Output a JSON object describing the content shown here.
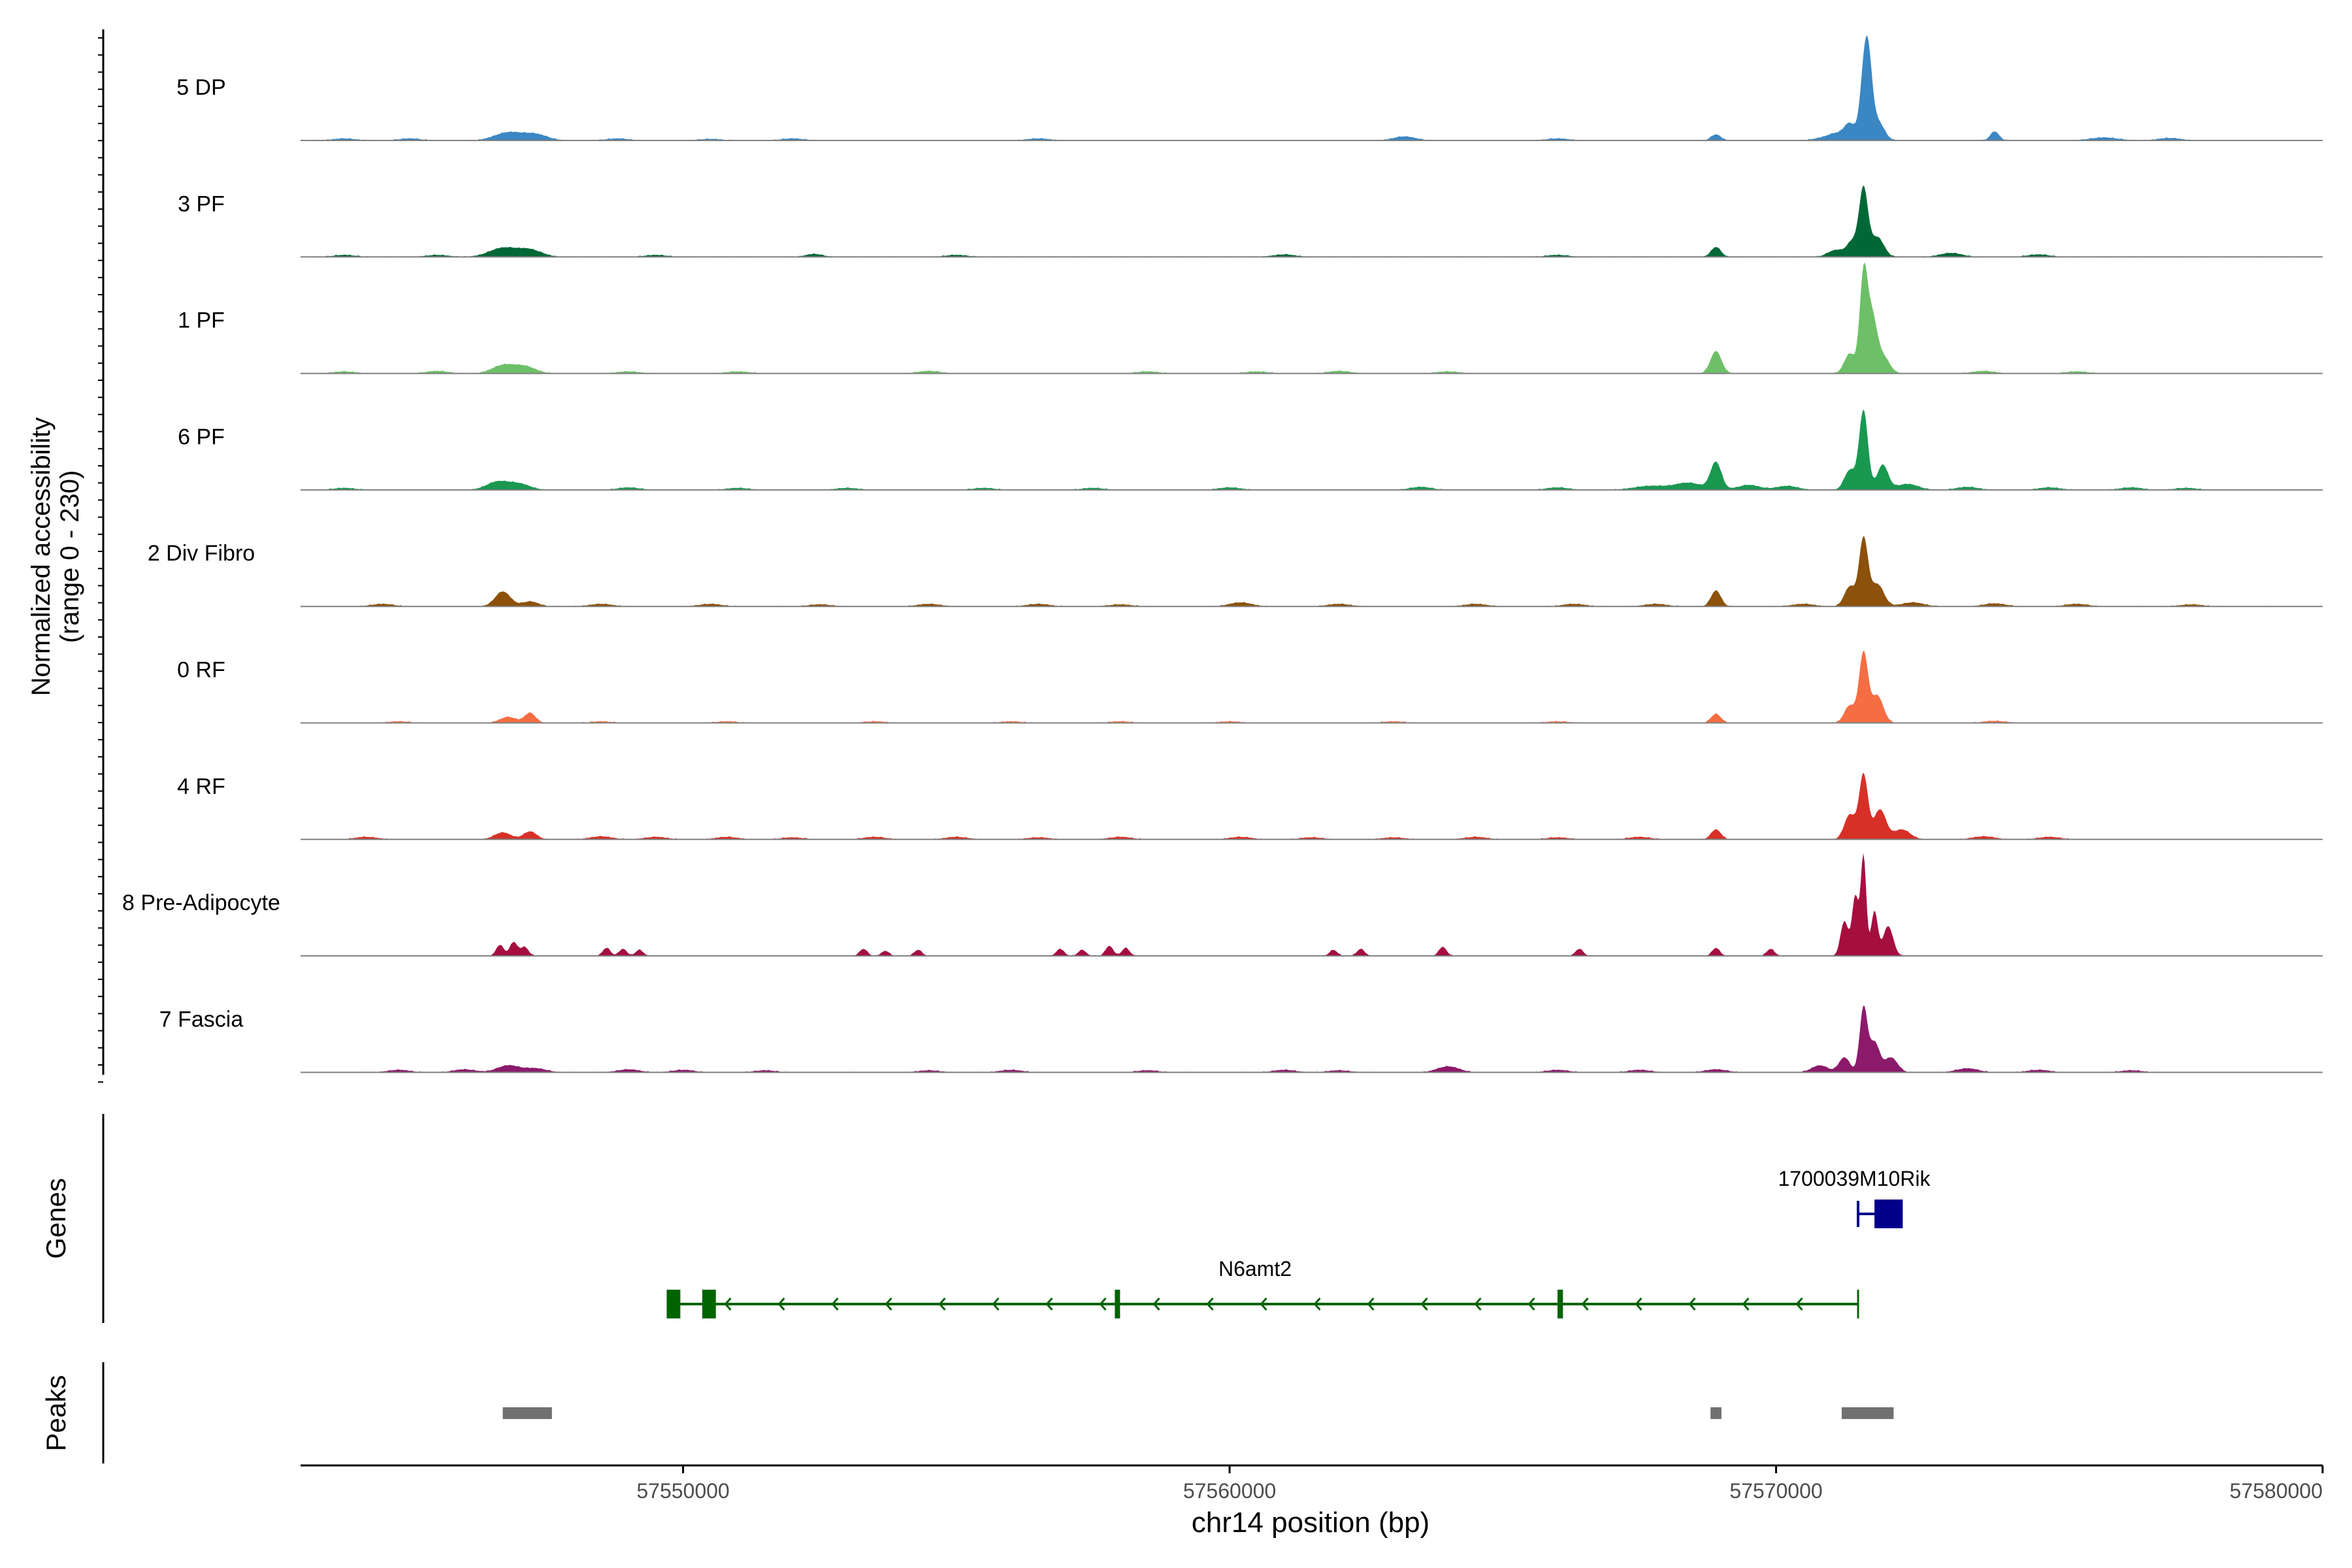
{
  "chart_data": {
    "type": "area",
    "title": "",
    "ylabel_line1": "Normalized accessibility",
    "ylabel_line2": "(range 0 - 230)",
    "xlabel": "chr14 position (bp)",
    "xlim": [
      57543000,
      57580000
    ],
    "ylim": [
      0,
      230
    ],
    "xticks": [
      57550000,
      57560000,
      57570000,
      57580000
    ],
    "xtick_labels": [
      "57550000",
      "57560000",
      "57570000",
      "57580000"
    ],
    "grid": false,
    "legend": "none",
    "series": [
      {
        "name": "5 DP",
        "color": "#3A87C4",
        "peaks": [
          [
            57543800,
            4,
            200
          ],
          [
            57545000,
            4,
            200
          ],
          [
            57546800,
            16,
            250
          ],
          [
            57547300,
            12,
            220
          ],
          [
            57548800,
            4,
            200
          ],
          [
            57550500,
            3,
            200
          ],
          [
            57552000,
            4,
            200
          ],
          [
            57556500,
            4,
            200
          ],
          [
            57563200,
            8,
            200
          ],
          [
            57566000,
            4,
            200
          ],
          [
            57568900,
            12,
            90
          ],
          [
            57570800,
            4,
            150
          ],
          [
            57571100,
            14,
            150
          ],
          [
            57571350,
            32,
            100
          ],
          [
            57571620,
            140,
            80
          ],
          [
            57571700,
            90,
            70
          ],
          [
            57571850,
            40,
            120
          ],
          [
            57574000,
            18,
            80
          ],
          [
            57576000,
            6,
            250
          ],
          [
            57577200,
            5,
            200
          ]
        ]
      },
      {
        "name": "3 PF",
        "color": "#006837",
        "peaks": [
          [
            57543800,
            4,
            200
          ],
          [
            57545500,
            4,
            200
          ],
          [
            57546700,
            18,
            250
          ],
          [
            57547200,
            14,
            220
          ],
          [
            57549500,
            4,
            200
          ],
          [
            57552400,
            6,
            150
          ],
          [
            57555000,
            4,
            200
          ],
          [
            57561000,
            5,
            200
          ],
          [
            57566000,
            4,
            200
          ],
          [
            57568900,
            20,
            90
          ],
          [
            57571100,
            14,
            150
          ],
          [
            57571400,
            30,
            100
          ],
          [
            57571600,
            135,
            80
          ],
          [
            57571850,
            40,
            120
          ],
          [
            57573200,
            8,
            200
          ],
          [
            57574800,
            5,
            200
          ]
        ]
      },
      {
        "name": "1 PF",
        "color": "#6DC067",
        "peaks": [
          [
            57543800,
            4,
            200
          ],
          [
            57545500,
            5,
            200
          ],
          [
            57546700,
            16,
            200
          ],
          [
            57547100,
            14,
            200
          ],
          [
            57549000,
            4,
            200
          ],
          [
            57551000,
            4,
            200
          ],
          [
            57554500,
            5,
            200
          ],
          [
            57558500,
            4,
            200
          ],
          [
            57560500,
            4,
            200
          ],
          [
            57562000,
            5,
            200
          ],
          [
            57564000,
            4,
            200
          ],
          [
            57568900,
            45,
            100
          ],
          [
            57571350,
            40,
            100
          ],
          [
            57571600,
            190,
            70
          ],
          [
            57571750,
            110,
            90
          ],
          [
            57571950,
            35,
            120
          ],
          [
            57573800,
            5,
            200
          ],
          [
            57575500,
            4,
            200
          ]
        ]
      },
      {
        "name": "6 PF",
        "color": "#1A9850",
        "peaks": [
          [
            57543800,
            4,
            200
          ],
          [
            57546600,
            16,
            200
          ],
          [
            57547000,
            12,
            200
          ],
          [
            57549000,
            5,
            200
          ],
          [
            57551000,
            4,
            200
          ],
          [
            57553000,
            4,
            200
          ],
          [
            57555500,
            4,
            200
          ],
          [
            57557500,
            4,
            200
          ],
          [
            57560000,
            5,
            200
          ],
          [
            57563500,
            6,
            200
          ],
          [
            57566000,
            5,
            200
          ],
          [
            57567700,
            8,
            300
          ],
          [
            57568400,
            14,
            250
          ],
          [
            57568900,
            55,
            100
          ],
          [
            57569500,
            10,
            200
          ],
          [
            57570200,
            8,
            200
          ],
          [
            57571350,
            40,
            100
          ],
          [
            57571600,
            160,
            80
          ],
          [
            57571950,
            50,
            100
          ],
          [
            57572400,
            12,
            200
          ],
          [
            57573500,
            6,
            200
          ],
          [
            57575000,
            5,
            200
          ],
          [
            57576500,
            5,
            200
          ],
          [
            57577500,
            4,
            200
          ]
        ]
      },
      {
        "name": "2 Div Fibro",
        "color": "#8C510A",
        "peaks": [
          [
            57544500,
            5,
            200
          ],
          [
            57546700,
            30,
            140
          ],
          [
            57547200,
            10,
            150
          ],
          [
            57548500,
            5,
            200
          ],
          [
            57550500,
            5,
            200
          ],
          [
            57552500,
            4,
            200
          ],
          [
            57554500,
            5,
            200
          ],
          [
            57556500,
            5,
            200
          ],
          [
            57558000,
            4,
            200
          ],
          [
            57560200,
            8,
            200
          ],
          [
            57562000,
            5,
            200
          ],
          [
            57564500,
            5,
            200
          ],
          [
            57566300,
            5,
            200
          ],
          [
            57567800,
            5,
            200
          ],
          [
            57568900,
            32,
            90
          ],
          [
            57570500,
            5,
            200
          ],
          [
            57571350,
            40,
            100
          ],
          [
            57571600,
            135,
            80
          ],
          [
            57571850,
            45,
            120
          ],
          [
            57572500,
            8,
            200
          ],
          [
            57574000,
            6,
            200
          ],
          [
            57575500,
            5,
            200
          ],
          [
            57577600,
            4,
            200
          ]
        ]
      },
      {
        "name": "0 RF",
        "color": "#F46D43",
        "peaks": [
          [
            57544800,
            3,
            200
          ],
          [
            57546800,
            12,
            150
          ],
          [
            57547200,
            20,
            100
          ],
          [
            57548500,
            3,
            200
          ],
          [
            57550800,
            3,
            200
          ],
          [
            57553500,
            3,
            200
          ],
          [
            57556000,
            3,
            200
          ],
          [
            57558000,
            3,
            200
          ],
          [
            57560000,
            3,
            200
          ],
          [
            57563000,
            3,
            200
          ],
          [
            57566000,
            3,
            200
          ],
          [
            57568900,
            18,
            90
          ],
          [
            57571350,
            35,
            100
          ],
          [
            57571600,
            140,
            80
          ],
          [
            57571850,
            55,
            110
          ],
          [
            57574000,
            4,
            200
          ]
        ]
      },
      {
        "name": "4 RF",
        "color": "#D73027",
        "peaks": [
          [
            57544200,
            5,
            200
          ],
          [
            57546700,
            14,
            150
          ],
          [
            57547200,
            16,
            120
          ],
          [
            57548500,
            6,
            200
          ],
          [
            57549500,
            5,
            200
          ],
          [
            57550800,
            5,
            200
          ],
          [
            57552000,
            4,
            200
          ],
          [
            57553500,
            5,
            200
          ],
          [
            57555000,
            5,
            200
          ],
          [
            57556500,
            4,
            200
          ],
          [
            57558000,
            5,
            200
          ],
          [
            57560200,
            5,
            200
          ],
          [
            57561500,
            4,
            200
          ],
          [
            57563000,
            4,
            200
          ],
          [
            57564500,
            5,
            200
          ],
          [
            57566000,
            4,
            200
          ],
          [
            57567500,
            5,
            200
          ],
          [
            57568900,
            20,
            90
          ],
          [
            57571350,
            50,
            100
          ],
          [
            57571600,
            130,
            80
          ],
          [
            57571900,
            60,
            110
          ],
          [
            57572300,
            20,
            150
          ],
          [
            57573800,
            6,
            200
          ],
          [
            57575000,
            5,
            200
          ]
        ]
      },
      {
        "name": "8 Pre-Adipocyte",
        "color": "#A50F3F",
        "peaks": [
          [
            57546650,
            22,
            70
          ],
          [
            57546900,
            28,
            70
          ],
          [
            57547100,
            18,
            70
          ],
          [
            57548600,
            16,
            70
          ],
          [
            57548900,
            14,
            70
          ],
          [
            57549200,
            12,
            70
          ],
          [
            57553300,
            14,
            70
          ],
          [
            57553700,
            10,
            70
          ],
          [
            57554300,
            12,
            70
          ],
          [
            57556900,
            14,
            70
          ],
          [
            57557300,
            12,
            70
          ],
          [
            57557800,
            20,
            70
          ],
          [
            57558100,
            16,
            70
          ],
          [
            57561900,
            12,
            70
          ],
          [
            57562400,
            14,
            70
          ],
          [
            57563900,
            18,
            70
          ],
          [
            57566400,
            14,
            70
          ],
          [
            57568900,
            16,
            70
          ],
          [
            57569900,
            14,
            70
          ],
          [
            57571250,
            70,
            70
          ],
          [
            57571450,
            120,
            60
          ],
          [
            57571600,
            200,
            50
          ],
          [
            57571800,
            90,
            60
          ],
          [
            57572050,
            60,
            90
          ]
        ]
      },
      {
        "name": "7 Fascia",
        "color": "#8B1A6B",
        "peaks": [
          [
            57544800,
            5,
            200
          ],
          [
            57546000,
            6,
            200
          ],
          [
            57546800,
            14,
            200
          ],
          [
            57547300,
            8,
            200
          ],
          [
            57549000,
            6,
            200
          ],
          [
            57550000,
            5,
            200
          ],
          [
            57551500,
            4,
            200
          ],
          [
            57554500,
            4,
            200
          ],
          [
            57556000,
            5,
            200
          ],
          [
            57558500,
            4,
            200
          ],
          [
            57561000,
            5,
            200
          ],
          [
            57562000,
            4,
            200
          ],
          [
            57564000,
            12,
            200
          ],
          [
            57566000,
            5,
            200
          ],
          [
            57567500,
            5,
            200
          ],
          [
            57568900,
            6,
            200
          ],
          [
            57570800,
            14,
            150
          ],
          [
            57571250,
            30,
            100
          ],
          [
            57571600,
            130,
            70
          ],
          [
            57571800,
            60,
            90
          ],
          [
            57572100,
            30,
            120
          ],
          [
            57573500,
            8,
            200
          ],
          [
            57574800,
            5,
            200
          ],
          [
            57576500,
            4,
            200
          ]
        ]
      }
    ],
    "genes": [
      {
        "name": "1700039M10Rik",
        "color": "#00008B",
        "start": 57571500,
        "end": 57572300,
        "exons": [
          [
            57571800,
            57572300
          ]
        ]
      },
      {
        "name": "N6amt2",
        "color": "#006400",
        "start": 57549700,
        "end": 57571500,
        "strand": "-",
        "exons": [
          [
            57549700,
            57549950
          ],
          [
            57550350,
            57550600
          ],
          [
            57557900,
            57557980
          ],
          [
            57566000,
            57566100
          ]
        ]
      }
    ],
    "peaks_track": [
      [
        57546700,
        57547600
      ],
      [
        57568800,
        57569000
      ],
      [
        57571200,
        57572150
      ]
    ],
    "gene_track_label": "Genes",
    "peak_track_label": "Peaks"
  }
}
